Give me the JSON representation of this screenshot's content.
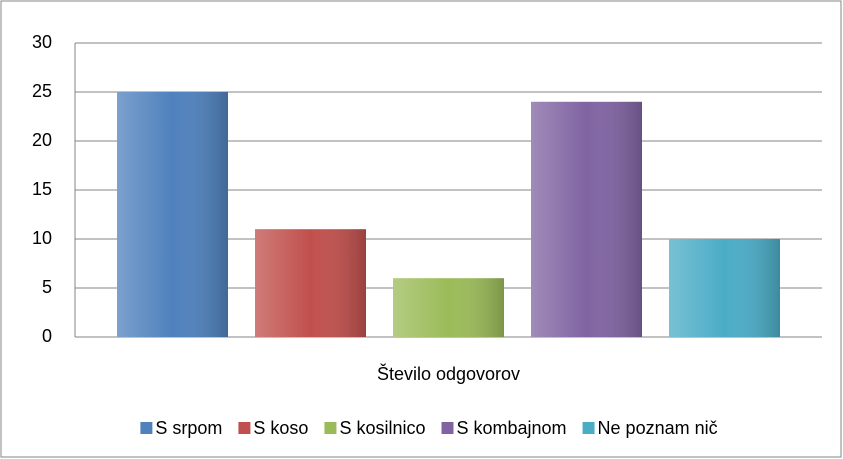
{
  "chart_data": {
    "type": "bar",
    "categories": [
      "Število odgovorov"
    ],
    "series": [
      {
        "name": "S srpom",
        "color": "#4f81bd",
        "values": [
          25
        ]
      },
      {
        "name": "S koso",
        "color": "#c0504d",
        "values": [
          11
        ]
      },
      {
        "name": "S kosilnico",
        "color": "#9bbb59",
        "values": [
          6
        ]
      },
      {
        "name": "S kombajnom",
        "color": "#8064a2",
        "values": [
          24
        ]
      },
      {
        "name": "Ne poznam nič",
        "color": "#4bacc6",
        "values": [
          10
        ]
      }
    ],
    "ylim": [
      0,
      30
    ],
    "yticks": [
      0,
      5,
      10,
      15,
      20,
      25,
      30
    ],
    "grid": true,
    "legend": "bottom"
  }
}
